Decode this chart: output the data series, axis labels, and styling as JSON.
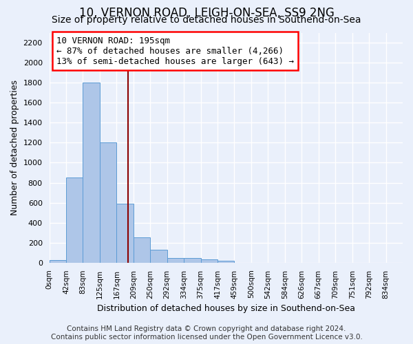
{
  "title": "10, VERNON ROAD, LEIGH-ON-SEA, SS9 2NG",
  "subtitle": "Size of property relative to detached houses in Southend-on-Sea",
  "xlabel": "Distribution of detached houses by size in Southend-on-Sea",
  "ylabel": "Number of detached properties",
  "bin_labels": [
    "0sqm",
    "42sqm",
    "83sqm",
    "125sqm",
    "167sqm",
    "209sqm",
    "250sqm",
    "292sqm",
    "334sqm",
    "375sqm",
    "417sqm",
    "459sqm",
    "500sqm",
    "542sqm",
    "584sqm",
    "626sqm",
    "667sqm",
    "709sqm",
    "751sqm",
    "792sqm",
    "834sqm"
  ],
  "bar_values": [
    25,
    850,
    1800,
    1200,
    590,
    255,
    130,
    45,
    45,
    30,
    18,
    0,
    0,
    0,
    0,
    0,
    0,
    0,
    0,
    0,
    0
  ],
  "bar_color": "#aec6e8",
  "bar_edge_color": "#5b9bd5",
  "red_line_x": 4.67,
  "annotation_text": "10 VERNON ROAD: 195sqm\n← 87% of detached houses are smaller (4,266)\n13% of semi-detached houses are larger (643) →",
  "ylim": [
    0,
    2300
  ],
  "yticks": [
    0,
    200,
    400,
    600,
    800,
    1000,
    1200,
    1400,
    1600,
    1800,
    2000,
    2200
  ],
  "footer_line1": "Contains HM Land Registry data © Crown copyright and database right 2024.",
  "footer_line2": "Contains public sector information licensed under the Open Government Licence v3.0.",
  "background_color": "#eaf0fb",
  "grid_color": "#d0d8ea",
  "title_fontsize": 12,
  "subtitle_fontsize": 10,
  "annotation_fontsize": 9,
  "footer_fontsize": 7.5,
  "ylabel_fontsize": 9,
  "xlabel_fontsize": 9
}
